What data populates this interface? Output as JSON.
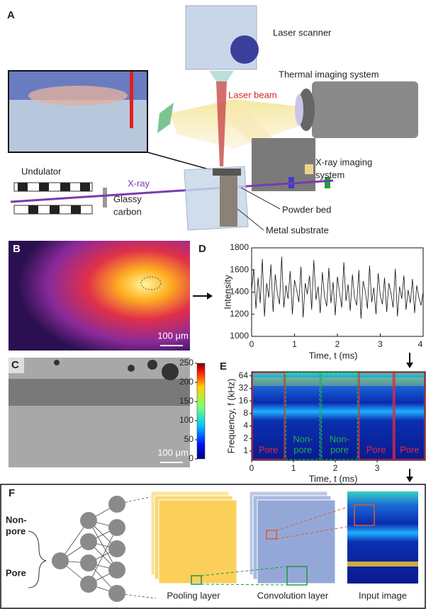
{
  "panels": {
    "A": {
      "label": "A",
      "laser_scanner": "Laser scanner",
      "laser_beam": "Laser beam",
      "thermal": "Thermal imaging system",
      "xray_system": [
        "X-ray imaging",
        "system"
      ],
      "undulator": "Undulator",
      "xray": "X-ray",
      "glassy_carbon": [
        "Glassy",
        "carbon"
      ],
      "powder_bed": "Powder bed",
      "metal_substrate": "Metal substrate"
    },
    "B": {
      "label": "B",
      "scale_bar": "100 μm"
    },
    "C": {
      "label": "C",
      "scale_bar": "100 μm"
    },
    "F": {
      "label": "F",
      "non_pore": [
        "Non-",
        "pore"
      ],
      "pore": "Pore",
      "pooling": "Pooling layer",
      "convolution": "Convolution layer",
      "input": "Input image"
    }
  },
  "chart_data": [
    {
      "type": "line",
      "label": "D",
      "ylabel": "Intensity",
      "xlabel": "Time, t (ms)",
      "color": "#111111",
      "xlim": [
        0,
        4
      ],
      "ylim": [
        1000,
        1800
      ],
      "xticks": [
        0,
        1,
        2,
        3,
        4
      ],
      "yticks": [
        1000,
        1200,
        1400,
        1600,
        1800
      ],
      "x": [
        0,
        0.05,
        0.1,
        0.15,
        0.2,
        0.25,
        0.3,
        0.35,
        0.4,
        0.45,
        0.5,
        0.55,
        0.6,
        0.65,
        0.7,
        0.75,
        0.8,
        0.85,
        0.9,
        0.95,
        1,
        1.05,
        1.1,
        1.15,
        1.2,
        1.25,
        1.3,
        1.35,
        1.4,
        1.45,
        1.5,
        1.55,
        1.6,
        1.65,
        1.7,
        1.75,
        1.8,
        1.85,
        1.9,
        1.95,
        2,
        2.05,
        2.1,
        2.15,
        2.2,
        2.25,
        2.3,
        2.35,
        2.4,
        2.45,
        2.5,
        2.55,
        2.6,
        2.65,
        2.7,
        2.75,
        2.8,
        2.85,
        2.9,
        2.95,
        3,
        3.05,
        3.1,
        3.15,
        3.2,
        3.25,
        3.3,
        3.35,
        3.4,
        3.45,
        3.5,
        3.55,
        3.6,
        3.65,
        3.7,
        3.75,
        3.8,
        3.85,
        3.9,
        3.95,
        4
      ],
      "values": [
        1420,
        1610,
        1250,
        1530,
        1300,
        1700,
        1180,
        1480,
        1350,
        1650,
        1220,
        1560,
        1390,
        1290,
        1720,
        1260,
        1460,
        1340,
        1590,
        1200,
        1510,
        1420,
        1310,
        1630,
        1170,
        1480,
        1380,
        1550,
        1240,
        1690,
        1330,
        1450,
        1210,
        1580,
        1360,
        1270,
        1620,
        1300,
        1490,
        1190,
        1540,
        1400,
        1260,
        1670,
        1320,
        1470,
        1230,
        1560,
        1350,
        1280,
        1600,
        1160,
        1500,
        1410,
        1250,
        1640,
        1310,
        1440,
        1200,
        1570,
        1370,
        1290,
        1530,
        1220,
        1480,
        1390,
        1260,
        1610,
        1180,
        1450,
        1340,
        1550,
        1240,
        1420,
        1300,
        1520,
        1210,
        1460,
        1350,
        1280,
        1400
      ]
    },
    {
      "type": "scalogram",
      "label": "E",
      "ylabel": "Frequency, f (kHz)",
      "xlabel": "Time, t (ms)",
      "log_y": true,
      "xlim": [
        0,
        4.15
      ],
      "ylim": [
        0.6,
        80
      ],
      "xticks": [
        0,
        1,
        2,
        3
      ],
      "yticks": [
        1,
        2,
        4,
        8,
        16,
        32,
        64
      ],
      "clim": [
        0,
        250
      ],
      "cticks": [
        0,
        50,
        100,
        150,
        200,
        250
      ],
      "segments": [
        {
          "label": [
            "Pore"
          ],
          "color": "#e8283a",
          "range": [
            0,
            0.8
          ]
        },
        {
          "label": [
            "Non-",
            "pore"
          ],
          "color": "#1fae4b",
          "range": [
            0.8,
            1.65
          ]
        },
        {
          "label": [
            "Non-",
            "pore"
          ],
          "color": "#1fae4b",
          "range": [
            1.65,
            2.55
          ]
        },
        {
          "label": [
            "Pore"
          ],
          "color": "#e8283a",
          "range": [
            2.55,
            3.4
          ]
        },
        {
          "label": [
            "Pore"
          ],
          "color": "#e8283a",
          "range": [
            3.4,
            4.15
          ]
        }
      ]
    }
  ]
}
